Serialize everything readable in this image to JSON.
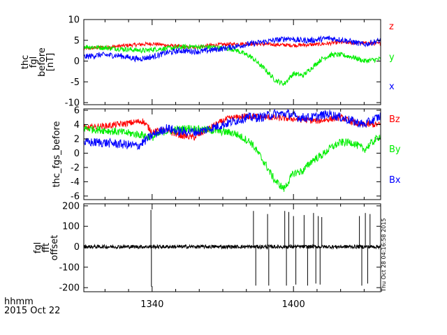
{
  "chart_data": [
    {
      "type": "line",
      "ylabel_lines": [
        "thc",
        "fgl",
        "before",
        "[nT]"
      ],
      "ylim": [
        -10.5,
        10
      ],
      "yticks": [
        -10,
        -5,
        0,
        5,
        10
      ],
      "xlim": [
        1311,
        1437
      ],
      "series": [
        {
          "name": "z",
          "color": "#ff0000",
          "noise": 0.45,
          "t": [
            1311,
            1320,
            1330,
            1340,
            1345,
            1350,
            1355,
            1360,
            1365,
            1370,
            1380,
            1390,
            1400,
            1410,
            1420,
            1430,
            1437
          ],
          "values": [
            3.0,
            3.3,
            3.8,
            4.2,
            3.9,
            3.6,
            3.3,
            3.4,
            3.8,
            4.0,
            4.2,
            4.0,
            3.8,
            4.0,
            4.5,
            4.3,
            4.2
          ]
        },
        {
          "name": "y",
          "color": "#00ee00",
          "noise": 0.6,
          "t": [
            1311,
            1320,
            1330,
            1337,
            1340,
            1345,
            1355,
            1365,
            1375,
            1382,
            1388,
            1392,
            1396,
            1400,
            1404,
            1408,
            1412,
            1416,
            1420,
            1425,
            1430,
            1437
          ],
          "values": [
            3.5,
            3.2,
            2.8,
            2.5,
            2.8,
            3.0,
            3.5,
            3.4,
            2.8,
            1.0,
            -2.0,
            -4.5,
            -5.5,
            -3.0,
            -3.5,
            -1.5,
            0.5,
            1.5,
            1.5,
            1.0,
            0.0,
            0.5
          ]
        },
        {
          "name": "x",
          "color": "#0000ff",
          "noise": 0.7,
          "t": [
            1311,
            1318,
            1326,
            1334,
            1340,
            1346,
            1352,
            1360,
            1370,
            1380,
            1386,
            1392,
            1398,
            1402,
            1408,
            1415,
            1422,
            1430,
            1437
          ],
          "values": [
            1.0,
            1.5,
            1.3,
            0.5,
            1.0,
            2.0,
            2.5,
            2.3,
            3.0,
            4.0,
            4.5,
            5.0,
            5.5,
            5.0,
            5.0,
            5.5,
            5.0,
            4.0,
            5.0
          ]
        }
      ],
      "legend": [
        {
          "label": "z",
          "color": "#ff0000"
        },
        {
          "label": "y",
          "color": "#00ee00"
        },
        {
          "label": "x",
          "color": "#0000ff"
        }
      ]
    },
    {
      "type": "line",
      "ylabel_lines": [
        "thc_fgs_before"
      ],
      "ylim": [
        -6.5,
        6.2
      ],
      "yticks": [
        -6,
        -4,
        -2,
        0,
        2,
        4,
        6
      ],
      "xlim": [
        1311,
        1437
      ],
      "series": [
        {
          "name": "Bz",
          "color": "#ff0000",
          "noise": 0.45,
          "t": [
            1311,
            1320,
            1330,
            1336,
            1340,
            1345,
            1352,
            1358,
            1362,
            1367,
            1372,
            1380,
            1390,
            1400,
            1410,
            1420,
            1428,
            1437
          ],
          "values": [
            3.5,
            3.8,
            4.2,
            4.5,
            3.0,
            3.2,
            2.5,
            2.2,
            3.0,
            4.0,
            4.8,
            5.2,
            5.0,
            4.8,
            4.5,
            5.0,
            4.0,
            4.0
          ]
        },
        {
          "name": "By",
          "color": "#00ee00",
          "noise": 0.55,
          "t": [
            1311,
            1320,
            1330,
            1337,
            1340,
            1345,
            1355,
            1365,
            1375,
            1382,
            1388,
            1392,
            1396,
            1400,
            1404,
            1408,
            1412,
            1416,
            1420,
            1425,
            1430,
            1437
          ],
          "values": [
            3.5,
            3.2,
            2.8,
            2.5,
            2.2,
            3.0,
            3.5,
            3.2,
            2.8,
            1.5,
            -1.5,
            -3.8,
            -5.0,
            -2.8,
            -2.5,
            -1.0,
            -0.3,
            0.8,
            1.5,
            1.5,
            0.5,
            2.5
          ]
        },
        {
          "name": "Bx",
          "color": "#0000ff",
          "noise": 0.65,
          "t": [
            1311,
            1318,
            1326,
            1334,
            1340,
            1346,
            1352,
            1360,
            1370,
            1380,
            1386,
            1392,
            1398,
            1402,
            1408,
            1415,
            1422,
            1430,
            1437
          ],
          "values": [
            1.5,
            1.5,
            1.3,
            1.0,
            2.5,
            3.5,
            3.0,
            3.0,
            4.0,
            5.0,
            5.0,
            5.5,
            5.5,
            5.0,
            5.0,
            5.5,
            4.8,
            4.0,
            5.2
          ]
        }
      ],
      "legend": [
        {
          "label": "Bz",
          "color": "#ff0000"
        },
        {
          "label": "By",
          "color": "#00ee00"
        },
        {
          "label": "Bx",
          "color": "#0000ff"
        }
      ]
    },
    {
      "type": "line",
      "ylabel_lines": [
        "fgl",
        "fft",
        "offset"
      ],
      "ylim": [
        -220,
        210
      ],
      "yticks": [
        -200,
        -100,
        0,
        100,
        200
      ],
      "xlim": [
        1311,
        1437
      ],
      "baseline_noise": 9,
      "spikes": [
        {
          "t": 1339.5,
          "value": 180
        },
        {
          "t": 1339.7,
          "value": -195
        },
        {
          "t": 1383.0,
          "value": 175
        },
        {
          "t": 1384.0,
          "value": -190
        },
        {
          "t": 1389.0,
          "value": 160
        },
        {
          "t": 1389.5,
          "value": -190
        },
        {
          "t": 1396.3,
          "value": 175
        },
        {
          "t": 1397.0,
          "value": -190
        },
        {
          "t": 1398.0,
          "value": 170
        },
        {
          "t": 1400.0,
          "value": 150
        },
        {
          "t": 1401.0,
          "value": -185
        },
        {
          "t": 1404.5,
          "value": 155
        },
        {
          "t": 1406.0,
          "value": -190
        },
        {
          "t": 1408.5,
          "value": 165
        },
        {
          "t": 1409.5,
          "value": -180
        },
        {
          "t": 1410.5,
          "value": 150
        },
        {
          "t": 1411.3,
          "value": -185
        },
        {
          "t": 1412.0,
          "value": 145
        },
        {
          "t": 1428.0,
          "value": 150
        },
        {
          "t": 1429.0,
          "value": -190
        },
        {
          "t": 1430.5,
          "value": 165
        },
        {
          "t": 1431.5,
          "value": -180
        },
        {
          "t": 1432.5,
          "value": 160
        }
      ],
      "series": [
        {
          "color": "#000000"
        }
      ]
    }
  ],
  "x_axis": {
    "ticks": [
      1340,
      1400
    ],
    "tick_labels": [
      "1340",
      "1400"
    ],
    "minor_step": 10
  },
  "corner_label": {
    "line1": "hhmm",
    "line2": "2015 Oct 22"
  },
  "timestamp": "Thu Oct 28 04:16:58 2015"
}
